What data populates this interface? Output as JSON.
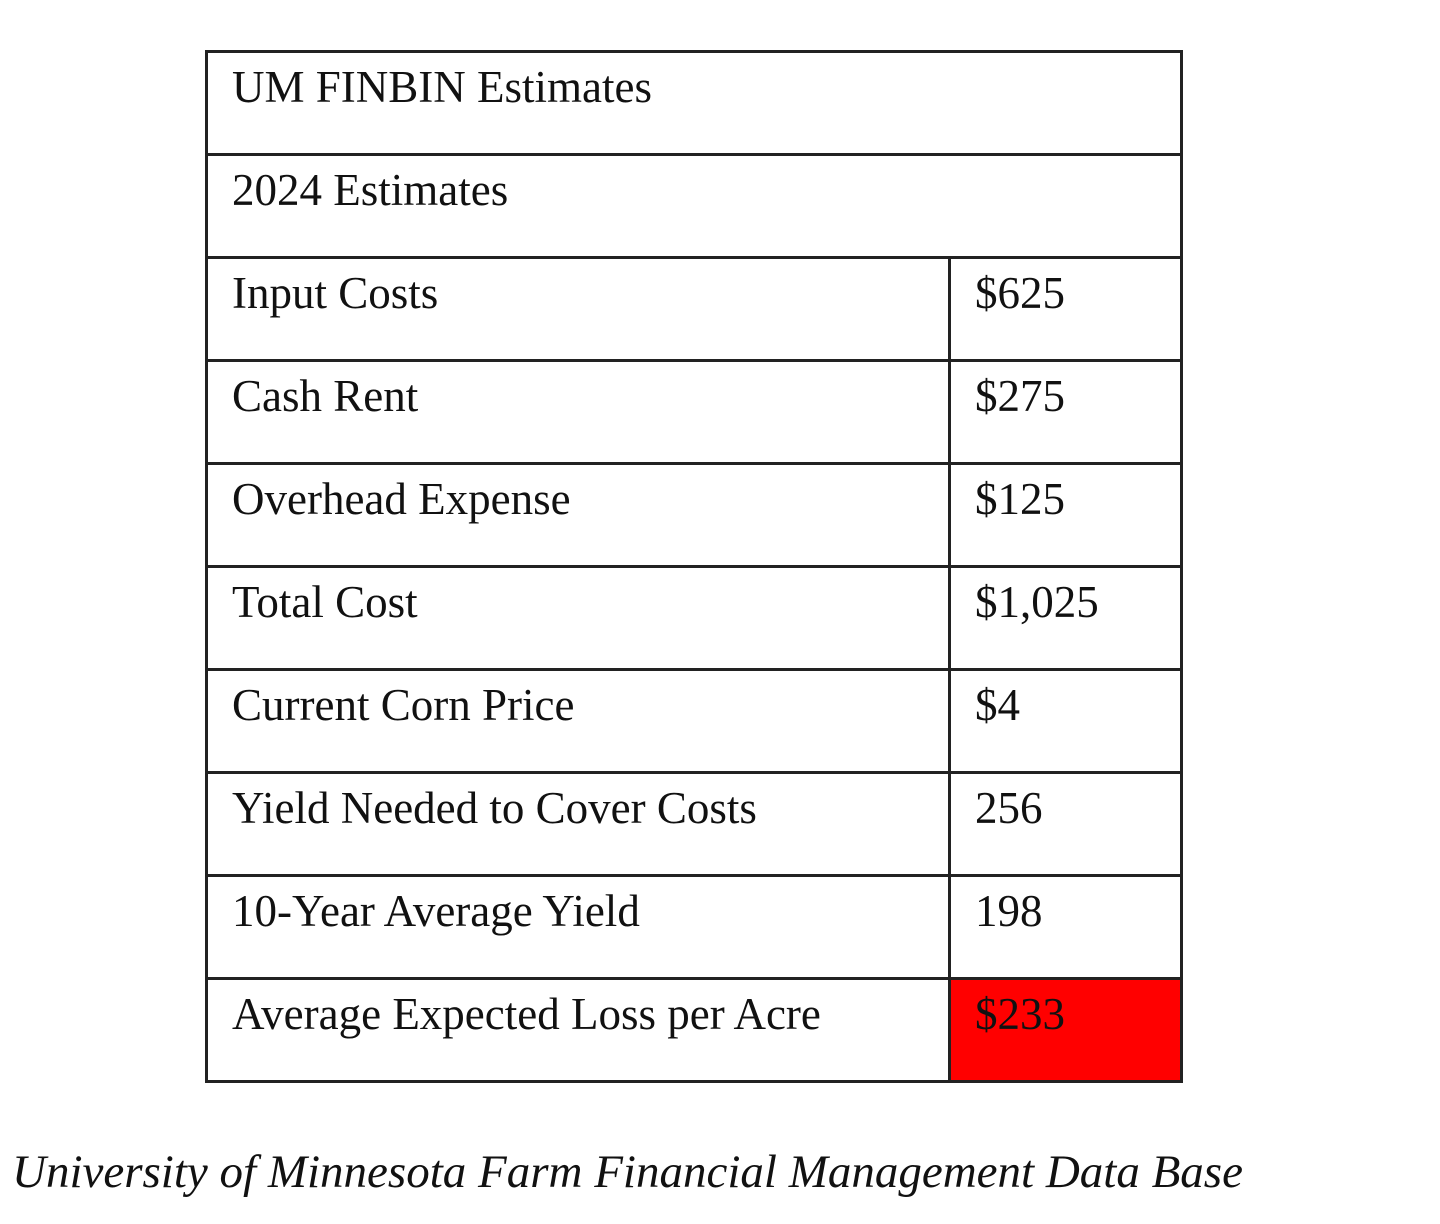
{
  "table": {
    "title": "UM FINBIN Estimates",
    "subtitle": "2024 Estimates",
    "rows": [
      {
        "label": "Input Costs",
        "value": "$625"
      },
      {
        "label": "Cash Rent",
        "value": "$275"
      },
      {
        "label": "Overhead Expense",
        "value": "$125"
      },
      {
        "label": "Total Cost",
        "value": "$1,025"
      },
      {
        "label": "Current Corn Price",
        "value": "$4"
      },
      {
        "label": "Yield Needed to Cover Costs",
        "value": "256"
      },
      {
        "label": "10-Year Average Yield",
        "value": "198"
      },
      {
        "label": "Average Expected Loss per Acre",
        "value": "$233",
        "fill": "#ff0000"
      }
    ]
  },
  "caption": "University of Minnesota Farm Financial Management Data Base"
}
